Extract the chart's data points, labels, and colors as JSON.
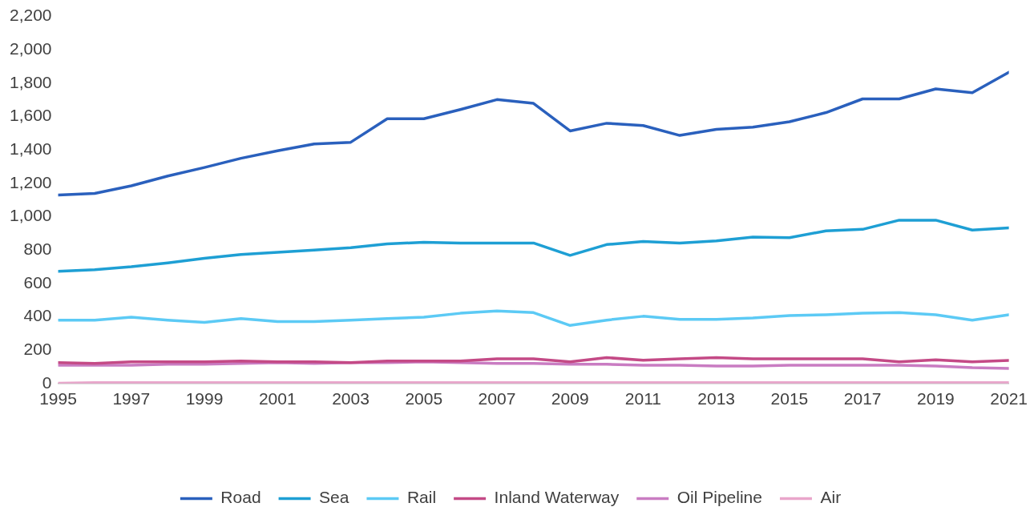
{
  "chart_data": {
    "type": "line",
    "x": [
      1995,
      1996,
      1997,
      1998,
      1999,
      2000,
      2001,
      2002,
      2003,
      2004,
      2005,
      2006,
      2007,
      2008,
      2009,
      2010,
      2011,
      2012,
      2013,
      2014,
      2015,
      2016,
      2017,
      2018,
      2019,
      2020,
      2021
    ],
    "series": [
      {
        "name": "Road",
        "color": "#2a60bd",
        "values": [
          1130,
          1139,
          1185,
          1244,
          1295,
          1350,
          1395,
          1436,
          1446,
          1587,
          1587,
          1642,
          1702,
          1679,
          1514,
          1560,
          1546,
          1487,
          1523,
          1537,
          1569,
          1624,
          1706,
          1706,
          1766,
          1743,
          1866
        ]
      },
      {
        "name": "Sea",
        "color": "#1e9fd4",
        "values": [
          672,
          682,
          700,
          723,
          750,
          773,
          787,
          800,
          814,
          837,
          846,
          842,
          842,
          842,
          768,
          833,
          851,
          842,
          855,
          878,
          874,
          915,
          924,
          979,
          979,
          920,
          933
        ]
      },
      {
        "name": "Rail",
        "color": "#5ccaf5",
        "values": [
          380,
          380,
          398,
          380,
          366,
          389,
          371,
          371,
          380,
          389,
          398,
          421,
          435,
          425,
          348,
          380,
          403,
          384,
          384,
          393,
          407,
          412,
          421,
          425,
          412,
          380,
          412
        ]
      },
      {
        "name": "Inland Waterway",
        "color": "#c44a86",
        "values": [
          125,
          120,
          130,
          130,
          130,
          135,
          130,
          130,
          125,
          135,
          135,
          135,
          148,
          148,
          130,
          155,
          140,
          148,
          155,
          148,
          148,
          148,
          148,
          130,
          142,
          130,
          138
        ]
      },
      {
        "name": "Oil Pipeline",
        "color": "#c97cc2",
        "values": [
          110,
          110,
          110,
          115,
          115,
          120,
          125,
          120,
          125,
          125,
          130,
          125,
          120,
          120,
          115,
          115,
          110,
          110,
          105,
          105,
          110,
          110,
          110,
          110,
          105,
          95,
          90
        ]
      },
      {
        "name": "Air",
        "color": "#e9a6cb",
        "values": [
          2,
          5,
          5,
          5,
          5,
          5,
          5,
          5,
          5,
          5,
          5,
          5,
          5,
          5,
          5,
          5,
          5,
          5,
          5,
          5,
          5,
          5,
          5,
          5,
          5,
          5,
          5
        ]
      }
    ],
    "xlim": [
      1995,
      2021
    ],
    "xticks": [
      1995,
      1997,
      1999,
      2001,
      2003,
      2005,
      2007,
      2009,
      2011,
      2013,
      2015,
      2017,
      2019,
      2021
    ],
    "ylim": [
      0,
      2200
    ],
    "yticks": [
      0,
      200,
      400,
      600,
      800,
      {
        "value": 1000,
        "label": "1,000"
      },
      {
        "value": 1200,
        "label": "1,200"
      },
      {
        "value": 1400,
        "label": "1,400"
      },
      {
        "value": 1600,
        "label": "1,600"
      },
      {
        "value": 1800,
        "label": "1,800"
      },
      {
        "value": 2000,
        "label": "2,000"
      },
      {
        "value": 2200,
        "label": "2,200"
      }
    ],
    "grid": false,
    "legend": "bottom",
    "marker": "none",
    "line_style": "solid"
  }
}
